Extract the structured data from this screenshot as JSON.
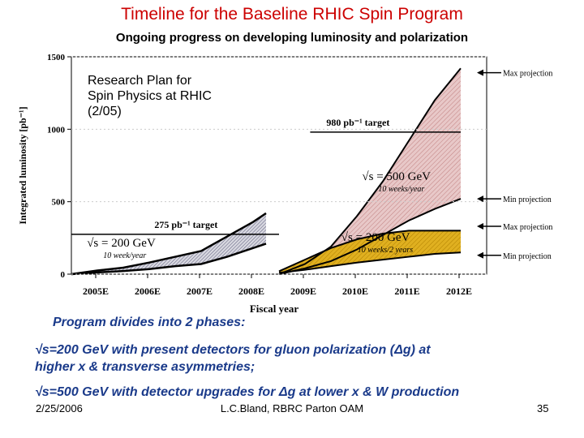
{
  "slide": {
    "title": "Timeline for the Baseline RHIC Spin Program",
    "subtitle": "Ongoing progress on developing luminosity and polarization",
    "plan_note": [
      "Research Plan for",
      "Spin Physics at RHIC",
      "(2/05)"
    ],
    "phases_intro": "Program divides into 2 phases:",
    "phase1_line1": "√s=200 GeV with present detectors for gluon polarization (Δg) at",
    "phase1_line2": "higher x & transverse asymmetries;",
    "phase2": "√s=500 GeV with detector upgrades for Δg at lower x & W production",
    "footer": {
      "date": "2/25/2006",
      "author": "L.C.Bland, RBRC Parton OAM",
      "page": "35"
    }
  },
  "colors": {
    "title": "#cc0000",
    "body_text": "#1a3a8a",
    "band_200": "#e0b020",
    "band_500": "#e8c8c8",
    "black": "#000000"
  },
  "chart_data": {
    "type": "area",
    "ylabel": "Integrated luminosity [pb⁻¹]",
    "xlabel": "Fiscal year",
    "ylim": [
      0,
      1500
    ],
    "yticks": [
      0,
      500,
      1000,
      1500
    ],
    "xticks": [
      "2005E",
      "2006E",
      "2007E",
      "2008E",
      "2009E",
      "2010E",
      "2011E",
      "2012E"
    ],
    "phase1": {
      "years": [
        2005,
        2005.5,
        2006,
        2006.5,
        2007,
        2007.5,
        2008,
        2008.5,
        2008.75
      ],
      "max": [
        0,
        25,
        45,
        80,
        120,
        160,
        260,
        360,
        420
      ],
      "min": [
        0,
        12,
        22,
        35,
        55,
        70,
        120,
        180,
        210
      ]
    },
    "phase2_500": {
      "years": [
        2009,
        2009.5,
        2010,
        2010.5,
        2011,
        2011.5,
        2012,
        2012.5
      ],
      "max": [
        0,
        70,
        190,
        400,
        640,
        920,
        1200,
        1420
      ],
      "min": [
        0,
        40,
        90,
        170,
        270,
        370,
        450,
        520
      ]
    },
    "phase2_200": {
      "years": [
        2009,
        2009.5,
        2010,
        2010.5,
        2011,
        2011.5,
        2012,
        2012.5
      ],
      "max": [
        20,
        100,
        180,
        240,
        280,
        300,
        300,
        300
      ],
      "min": [
        10,
        30,
        55,
        80,
        100,
        120,
        140,
        150
      ]
    },
    "targets": [
      {
        "label": "980 pb⁻¹ target",
        "value": 980,
        "x_from": 2009.6,
        "x_to": 2012.5
      },
      {
        "label": "275 pb⁻¹ target",
        "value": 275,
        "x_from": 2005,
        "x_to": 2009
      }
    ],
    "annotations": [
      {
        "label": "√s = 500 GeV",
        "sub": "10 weeks/year"
      },
      {
        "label": "√s = 200 GeV",
        "sub": "10 week/year"
      },
      {
        "label": "√s = 200 GeV",
        "sub": "10 weeks/2 years"
      }
    ],
    "legend": [
      "Max projection",
      "Min projection",
      "Max projection",
      "Min projection"
    ]
  }
}
